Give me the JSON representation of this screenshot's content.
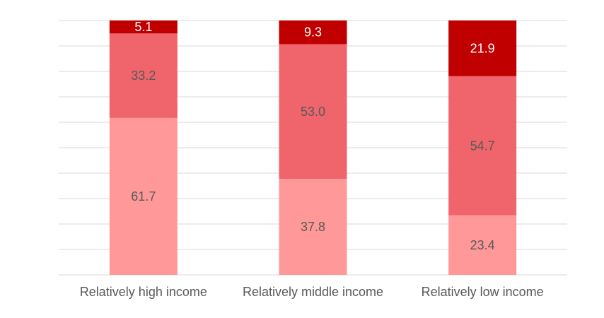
{
  "chart_data": {
    "type": "bar",
    "stacked": true,
    "percent_stacked": true,
    "categories": [
      "Relatively high income",
      "Relatively middle income",
      "Relatively low income"
    ],
    "series": [
      {
        "values": [
          61.7,
          37.8,
          23.4
        ],
        "color": "#ff9999",
        "label_color": "#595959"
      },
      {
        "values": [
          33.2,
          53.0,
          54.7
        ],
        "color": "#f0646c",
        "label_color": "#595959"
      },
      {
        "values": [
          5.1,
          9.3,
          21.9
        ],
        "color": "#c00000",
        "label_color": "#ffffff"
      }
    ],
    "ylim": [
      0,
      100
    ],
    "gridlines": true,
    "gridline_count": 10,
    "data_labels": true,
    "legend": "none"
  }
}
